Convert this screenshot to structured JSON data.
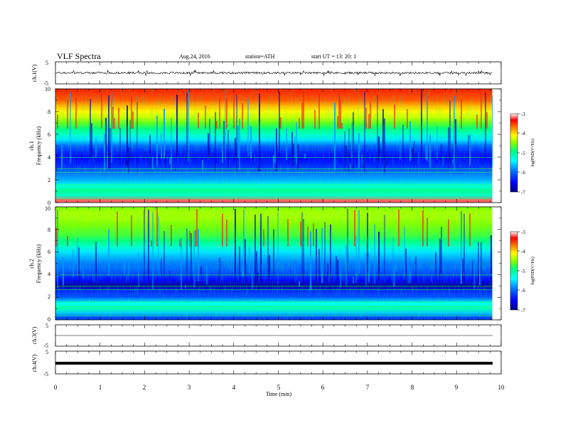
{
  "header": {
    "title": "VLF Spectra",
    "date": "Aug.24, 2016",
    "station": "station=ATH",
    "start": "start UT = 13: 20: 1"
  },
  "panels": {
    "ch1_wave": {
      "ylabel": "ch.1(V)",
      "ticks": [
        "5",
        "-5"
      ]
    },
    "ch1_spec": {
      "ylabel_top": "ch.1",
      "ylabel": "Frequency (kHz)",
      "ticks": [
        "0",
        "2",
        "4",
        "6",
        "8",
        "10"
      ]
    },
    "ch2_spec": {
      "ylabel_top": "ch.2",
      "ylabel": "Frequency (kHz)",
      "ticks": [
        "0",
        "2",
        "4",
        "6",
        "8",
        "10"
      ]
    },
    "ch3_wave": {
      "ylabel": "ch.3(V)",
      "ticks": [
        "5",
        "-5"
      ]
    },
    "ch4_wave": {
      "ylabel": "ch.4(V)",
      "ticks": [
        "5",
        "-5"
      ]
    }
  },
  "colorbar": {
    "label": "log(PSD(V²/Hz)",
    "ticks": [
      "-3",
      "-4",
      "-5",
      "-6",
      "-7"
    ]
  },
  "xaxis": {
    "label": "Time (min)",
    "ticks": [
      "0",
      "1",
      "2",
      "3",
      "4",
      "5",
      "6",
      "7",
      "8",
      "9",
      "10"
    ]
  },
  "chart_data": {
    "type": "heatmap",
    "title": "VLF Spectra",
    "xlabel": "Time (min)",
    "xlim": [
      0,
      10
    ],
    "data_end_min": 9.8,
    "panels": [
      {
        "name": "ch.1(V)",
        "type": "line",
        "ylim": [
          -5,
          5
        ],
        "baseline": 0,
        "amplitude_range": [
          -1.5,
          1.2
        ]
      },
      {
        "name": "ch.1",
        "type": "heatmap",
        "ylabel": "Frequency (kHz)",
        "ylim": [
          0,
          10
        ],
        "log_psd_by_freq_khz": [
          {
            "f": 0.2,
            "v": -3.2
          },
          {
            "f": 0.6,
            "v": -5.2
          },
          {
            "f": 1.0,
            "v": -5.0
          },
          {
            "f": 1.5,
            "v": -5.3
          },
          {
            "f": 2.0,
            "v": -5.7
          },
          {
            "f": 2.5,
            "v": -5.9
          },
          {
            "f": 3.0,
            "v": -6.2
          },
          {
            "f": 3.5,
            "v": -6.4
          },
          {
            "f": 4.0,
            "v": -6.5
          },
          {
            "f": 4.5,
            "v": -6.3
          },
          {
            "f": 5.0,
            "v": -6.0
          },
          {
            "f": 5.5,
            "v": -5.5
          },
          {
            "f": 6.0,
            "v": -5.2
          },
          {
            "f": 6.5,
            "v": -4.9
          },
          {
            "f": 7.0,
            "v": -4.6
          },
          {
            "f": 7.5,
            "v": -4.3
          },
          {
            "f": 8.0,
            "v": -4.1
          },
          {
            "f": 8.5,
            "v": -3.9
          },
          {
            "f": 9.0,
            "v": -3.6
          },
          {
            "f": 9.5,
            "v": -3.5
          },
          {
            "f": 10.0,
            "v": -3.4
          }
        ]
      },
      {
        "name": "ch.2",
        "type": "heatmap",
        "ylabel": "Frequency (kHz)",
        "ylim": [
          0,
          10
        ],
        "log_psd_by_freq_khz": [
          {
            "f": 0.2,
            "v": -6.2
          },
          {
            "f": 0.6,
            "v": -5.6
          },
          {
            "f": 1.0,
            "v": -5.1
          },
          {
            "f": 1.5,
            "v": -5.4
          },
          {
            "f": 2.0,
            "v": -6.1
          },
          {
            "f": 2.5,
            "v": -6.3
          },
          {
            "f": 3.0,
            "v": -6.9
          },
          {
            "f": 3.5,
            "v": -6.5
          },
          {
            "f": 4.0,
            "v": -6.2
          },
          {
            "f": 4.5,
            "v": -6.0
          },
          {
            "f": 5.0,
            "v": -5.9
          },
          {
            "f": 5.5,
            "v": -5.7
          },
          {
            "f": 6.0,
            "v": -5.5
          },
          {
            "f": 6.5,
            "v": -5.2
          },
          {
            "f": 7.0,
            "v": -4.9
          },
          {
            "f": 7.5,
            "v": -4.7
          },
          {
            "f": 8.0,
            "v": -4.6
          },
          {
            "f": 8.5,
            "v": -4.5
          },
          {
            "f": 9.0,
            "v": -4.4
          },
          {
            "f": 9.5,
            "v": -4.4
          },
          {
            "f": 10.0,
            "v": -4.5
          }
        ]
      },
      {
        "name": "ch.3(V)",
        "type": "line",
        "ylim": [
          -5,
          5
        ],
        "baseline": 0
      },
      {
        "name": "ch.4(V)",
        "type": "line",
        "ylim": [
          -5,
          5
        ],
        "baseline": 0
      }
    ],
    "colorbar": {
      "label": "log(PSD(V²/Hz)",
      "range": [
        -7,
        -3
      ]
    },
    "colors": [
      "#000080",
      "#0000ff",
      "#0080ff",
      "#00ffff",
      "#00ff80",
      "#80ff00",
      "#ffff00",
      "#ff8000",
      "#ff0000",
      "#ffffff"
    ]
  }
}
